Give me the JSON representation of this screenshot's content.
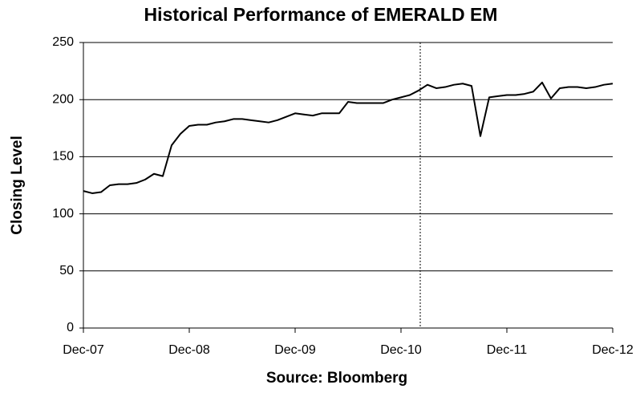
{
  "chart_data": {
    "type": "line",
    "title": "Historical Performance of EMERALD EM",
    "ylabel": "Closing Level",
    "xlabel": "Source: Bloomberg",
    "categories": [
      "Dec-07",
      null,
      null,
      null,
      null,
      null,
      null,
      null,
      null,
      null,
      null,
      null,
      "Dec-08",
      null,
      null,
      null,
      null,
      null,
      null,
      null,
      null,
      null,
      null,
      null,
      "Dec-09",
      null,
      null,
      null,
      null,
      null,
      null,
      null,
      null,
      null,
      null,
      null,
      "Dec-10",
      null,
      null,
      null,
      null,
      null,
      null,
      null,
      null,
      null,
      null,
      null,
      "Dec-11",
      null,
      null,
      null,
      null,
      null,
      null,
      null,
      null,
      null,
      null,
      null,
      "Dec-12"
    ],
    "series": [
      {
        "name": "EMERALD EM",
        "color": "#000000",
        "values": [
          120,
          118,
          119,
          125,
          126,
          126,
          127,
          130,
          135,
          133,
          160,
          170,
          177,
          178,
          178,
          180,
          181,
          183,
          183,
          182,
          181,
          180,
          182,
          185,
          188,
          187,
          186,
          188,
          188,
          188,
          198,
          197,
          197,
          197,
          197,
          200,
          202,
          204,
          208,
          213,
          210,
          211,
          213,
          214,
          212,
          168,
          202,
          203,
          204,
          204,
          205,
          207,
          215,
          201,
          210,
          211,
          211,
          210,
          211,
          213,
          214
        ]
      }
    ],
    "ylim": [
      0,
      250
    ],
    "yticks": [
      0,
      50,
      100,
      150,
      200,
      250
    ],
    "grid": true
  }
}
